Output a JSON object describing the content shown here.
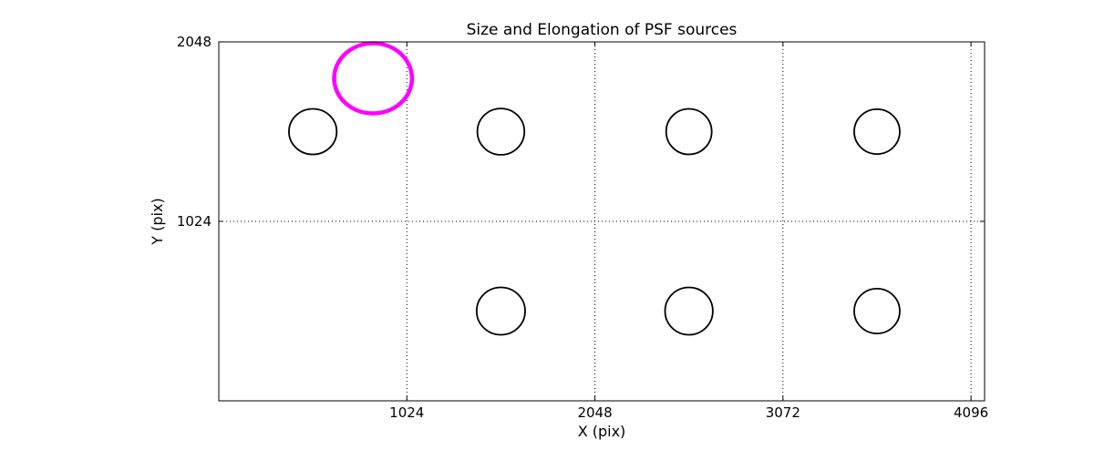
{
  "chart_data": {
    "type": "scatter",
    "title": "Size and Elongation of PSF sources",
    "xlabel": "X (pix)",
    "ylabel": "Y (pix)",
    "xlim": [
      0,
      4170
    ],
    "ylim": [
      0,
      2048
    ],
    "xticks": [
      1024,
      2048,
      3072,
      4096
    ],
    "yticks": [
      1024,
      2048
    ],
    "grid": "dotted",
    "grid_color": "#000000",
    "accent_color": "#ff00ff",
    "marker_color": "#000000",
    "ellipses": [
      {
        "x": 512,
        "y": 1536,
        "rx": 130,
        "ry": 130,
        "color": "#000000",
        "lw": 1.8
      },
      {
        "x": 1536,
        "y": 1536,
        "rx": 128,
        "ry": 132,
        "color": "#000000",
        "lw": 1.8
      },
      {
        "x": 2560,
        "y": 1536,
        "rx": 124,
        "ry": 130,
        "color": "#000000",
        "lw": 1.8
      },
      {
        "x": 3584,
        "y": 1536,
        "rx": 124,
        "ry": 128,
        "color": "#000000",
        "lw": 1.8
      },
      {
        "x": 1536,
        "y": 512,
        "rx": 132,
        "ry": 135,
        "color": "#000000",
        "lw": 1.8
      },
      {
        "x": 2560,
        "y": 512,
        "rx": 130,
        "ry": 135,
        "color": "#000000",
        "lw": 1.8
      },
      {
        "x": 3584,
        "y": 512,
        "rx": 124,
        "ry": 128,
        "color": "#000000",
        "lw": 1.8
      },
      {
        "x": 840,
        "y": 1840,
        "rx": 212,
        "ry": 200,
        "color": "#ff00ff",
        "lw": 4.5
      }
    ]
  }
}
